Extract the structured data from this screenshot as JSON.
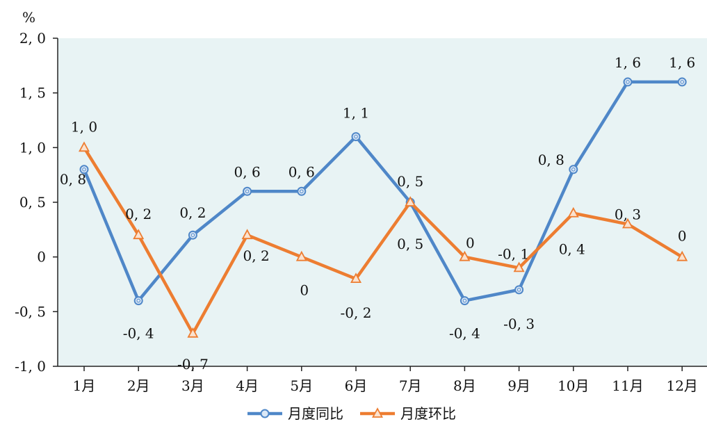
{
  "chart_data": {
    "type": "line",
    "ylabel": "%",
    "ylim": [
      -1.0,
      2.0
    ],
    "yticks": [
      -1.0,
      -0.5,
      0,
      0.5,
      1.0,
      1.5,
      2.0
    ],
    "ytick_labels": [
      "-1, 0",
      "-0, 5",
      "0",
      "0, 5",
      "1, 0",
      "1, 5",
      "2, 0"
    ],
    "categories": [
      "1月",
      "2月",
      "3月",
      "4月",
      "5月",
      "6月",
      "7月",
      "8月",
      "9月",
      "10月",
      "11月",
      "12月"
    ],
    "grid": false,
    "legend_position": "bottom",
    "plot_background": "#e8f3f4",
    "series": [
      {
        "name": "月度同比",
        "color": "#4f87c8",
        "marker": "circle",
        "values": [
          0.8,
          -0.4,
          0.2,
          0.6,
          0.6,
          1.1,
          0.5,
          -0.4,
          -0.3,
          0.8,
          1.6,
          1.6
        ],
        "labels": [
          "0, 8",
          "-0, 4",
          "0, 2",
          "0, 6",
          "0, 6",
          "1, 1",
          "0, 5",
          "-0, 4",
          "-0, 3",
          "0, 8",
          "1, 6",
          "1, 6"
        ]
      },
      {
        "name": "月度环比",
        "color": "#ed7d31",
        "marker": "triangle",
        "values": [
          1.0,
          0.2,
          -0.7,
          0.2,
          0,
          -0.2,
          0.5,
          0,
          -0.1,
          0.4,
          0.3,
          0
        ],
        "labels": [
          "1, 0",
          "0, 2",
          "-0, 7",
          "0, 2",
          "0",
          "-0, 2",
          "0, 5",
          "0",
          "-0, 1",
          "0, 4",
          "0, 3",
          "0"
        ]
      }
    ]
  }
}
